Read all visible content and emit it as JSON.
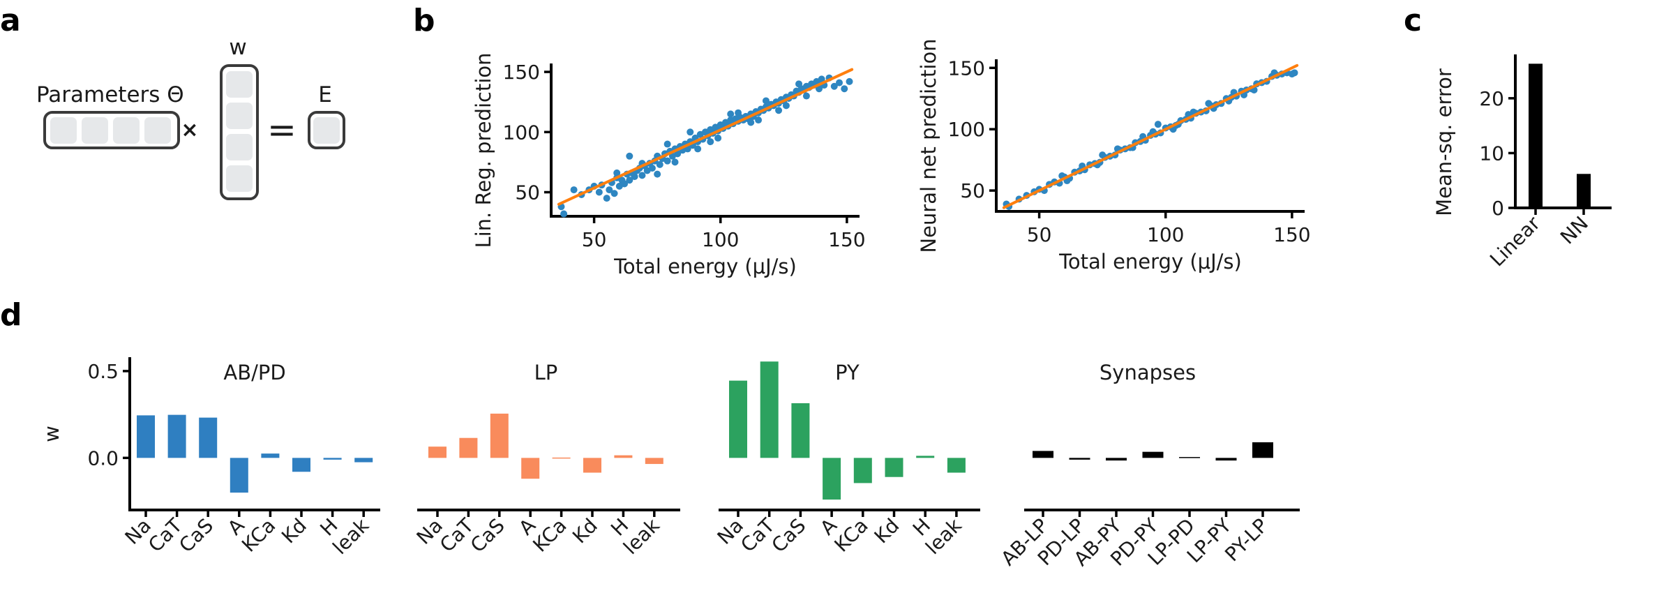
{
  "panels": {
    "a": {
      "label": "a",
      "w_label": "w",
      "params_label": "Parameters Θ",
      "times": "×",
      "equals": "=",
      "e_label": "E"
    },
    "b": {
      "label": "b"
    },
    "c": {
      "label": "c"
    },
    "d": {
      "label": "d"
    }
  },
  "colors": {
    "scatter": "#2e86c1",
    "fit": "#ff7f0e",
    "abpd": "#2f7fc1",
    "lp": "#f98b5c",
    "py": "#2ca25f",
    "syn": "#000000",
    "box_fill": "#e6e8ea",
    "box_stroke": "#3a3a3a"
  },
  "chart_data": [
    {
      "id": "b-linear",
      "type": "scatter",
      "xlabel": "Total energy (μJ/s)",
      "ylabel": "Lin. Reg. prediction",
      "xlim": [
        33,
        155
      ],
      "ylim": [
        30,
        157
      ],
      "xticks": [
        50,
        100,
        150
      ],
      "yticks": [
        50,
        100,
        150
      ],
      "fit_line": [
        [
          36,
          40
        ],
        [
          152,
          152
        ]
      ],
      "points": [
        [
          37,
          38
        ],
        [
          38,
          32
        ],
        [
          42,
          52
        ],
        [
          45,
          48
        ],
        [
          48,
          52
        ],
        [
          50,
          55
        ],
        [
          52,
          50
        ],
        [
          53,
          56
        ],
        [
          55,
          45
        ],
        [
          56,
          52
        ],
        [
          57,
          58
        ],
        [
          58,
          49
        ],
        [
          59,
          62
        ],
        [
          60,
          55
        ],
        [
          61,
          60
        ],
        [
          62,
          57
        ],
        [
          63,
          65
        ],
        [
          64,
          60
        ],
        [
          65,
          66
        ],
        [
          66,
          63
        ],
        [
          67,
          68
        ],
        [
          68,
          70
        ],
        [
          69,
          64
        ],
        [
          70,
          72
        ],
        [
          71,
          68
        ],
        [
          72,
          74
        ],
        [
          73,
          70
        ],
        [
          74,
          76
        ],
        [
          75,
          80
        ],
        [
          76,
          73
        ],
        [
          77,
          78
        ],
        [
          78,
          82
        ],
        [
          79,
          76
        ],
        [
          80,
          84
        ],
        [
          81,
          80
        ],
        [
          82,
          86
        ],
        [
          83,
          82
        ],
        [
          84,
          88
        ],
        [
          85,
          85
        ],
        [
          86,
          90
        ],
        [
          87,
          86
        ],
        [
          88,
          92
        ],
        [
          89,
          89
        ],
        [
          90,
          95
        ],
        [
          91,
          92
        ],
        [
          92,
          98
        ],
        [
          93,
          94
        ],
        [
          94,
          100
        ],
        [
          95,
          97
        ],
        [
          96,
          102
        ],
        [
          97,
          99
        ],
        [
          98,
          104
        ],
        [
          99,
          101
        ],
        [
          100,
          106
        ],
        [
          101,
          103
        ],
        [
          102,
          108
        ],
        [
          103,
          105
        ],
        [
          104,
          110
        ],
        [
          105,
          107
        ],
        [
          106,
          111
        ],
        [
          107,
          109
        ],
        [
          108,
          112
        ],
        [
          109,
          110
        ],
        [
          110,
          113
        ],
        [
          111,
          111
        ],
        [
          112,
          115
        ],
        [
          113,
          113
        ],
        [
          114,
          117
        ],
        [
          115,
          116
        ],
        [
          116,
          119
        ],
        [
          117,
          118
        ],
        [
          118,
          121
        ],
        [
          119,
          120
        ],
        [
          120,
          123
        ],
        [
          121,
          122
        ],
        [
          122,
          125
        ],
        [
          123,
          124
        ],
        [
          124,
          127
        ],
        [
          125,
          126
        ],
        [
          126,
          129
        ],
        [
          127,
          128
        ],
        [
          128,
          131
        ],
        [
          129,
          130
        ],
        [
          130,
          134
        ],
        [
          131,
          133
        ],
        [
          132,
          136
        ],
        [
          133,
          135
        ],
        [
          134,
          138
        ],
        [
          135,
          137
        ],
        [
          136,
          140
        ],
        [
          137,
          139
        ],
        [
          138,
          142
        ],
        [
          139,
          141
        ],
        [
          140,
          144
        ],
        [
          141,
          139
        ],
        [
          143,
          145
        ],
        [
          145,
          138
        ],
        [
          147,
          141
        ],
        [
          149,
          136
        ],
        [
          151,
          142
        ],
        [
          64,
          80
        ],
        [
          75,
          65
        ],
        [
          82,
          75
        ],
        [
          88,
          100
        ],
        [
          96,
          92
        ],
        [
          104,
          115
        ],
        [
          112,
          108
        ],
        [
          118,
          126
        ],
        [
          126,
          122
        ],
        [
          134,
          130
        ],
        [
          59,
          66
        ],
        [
          69,
          74
        ],
        [
          79,
          90
        ],
        [
          91,
          86
        ],
        [
          99,
          95
        ],
        [
          107,
          116
        ],
        [
          115,
          110
        ],
        [
          123,
          118
        ],
        [
          131,
          140
        ],
        [
          139,
          136
        ]
      ]
    },
    {
      "id": "b-nn",
      "type": "scatter",
      "xlabel": "Total energy (μJ/s)",
      "ylabel": "Neural net prediction",
      "xlim": [
        33,
        155
      ],
      "ylim": [
        33,
        157
      ],
      "xticks": [
        50,
        100,
        150
      ],
      "yticks": [
        50,
        100,
        150
      ],
      "fit_line": [
        [
          36,
          36
        ],
        [
          152,
          152
        ]
      ],
      "points": [
        [
          37,
          39
        ],
        [
          38,
          37
        ],
        [
          42,
          43
        ],
        [
          45,
          46
        ],
        [
          48,
          49
        ],
        [
          50,
          51
        ],
        [
          52,
          50
        ],
        [
          54,
          55
        ],
        [
          56,
          57
        ],
        [
          58,
          56
        ],
        [
          60,
          61
        ],
        [
          62,
          60
        ],
        [
          64,
          65
        ],
        [
          66,
          66
        ],
        [
          68,
          67
        ],
        [
          70,
          71
        ],
        [
          72,
          72
        ],
        [
          74,
          73
        ],
        [
          76,
          77
        ],
        [
          78,
          78
        ],
        [
          80,
          79
        ],
        [
          82,
          83
        ],
        [
          84,
          84
        ],
        [
          86,
          85
        ],
        [
          88,
          89
        ],
        [
          90,
          90
        ],
        [
          92,
          91
        ],
        [
          94,
          95
        ],
        [
          96,
          96
        ],
        [
          98,
          97
        ],
        [
          100,
          101
        ],
        [
          102,
          102
        ],
        [
          104,
          103
        ],
        [
          106,
          107
        ],
        [
          108,
          108
        ],
        [
          110,
          109
        ],
        [
          112,
          113
        ],
        [
          114,
          114
        ],
        [
          116,
          115
        ],
        [
          118,
          119
        ],
        [
          120,
          120
        ],
        [
          122,
          121
        ],
        [
          124,
          125
        ],
        [
          126,
          126
        ],
        [
          128,
          127
        ],
        [
          130,
          131
        ],
        [
          132,
          132
        ],
        [
          134,
          133
        ],
        [
          136,
          137
        ],
        [
          138,
          138
        ],
        [
          140,
          139
        ],
        [
          142,
          143
        ],
        [
          144,
          144
        ],
        [
          146,
          145
        ],
        [
          148,
          146
        ],
        [
          150,
          145
        ],
        [
          151,
          146
        ],
        [
          59,
          62
        ],
        [
          67,
          70
        ],
        [
          73,
          71
        ],
        [
          81,
          84
        ],
        [
          87,
          85
        ],
        [
          95,
          98
        ],
        [
          103,
          100
        ],
        [
          111,
          114
        ],
        [
          119,
          117
        ],
        [
          127,
          130
        ],
        [
          135,
          132
        ],
        [
          143,
          146
        ],
        [
          61,
          58
        ],
        [
          75,
          79
        ],
        [
          91,
          94
        ],
        [
          105,
          104
        ],
        [
          117,
          121
        ],
        [
          131,
          128
        ],
        [
          97,
          104
        ],
        [
          109,
          112
        ],
        [
          125,
          123
        ]
      ]
    },
    {
      "id": "c",
      "type": "bar",
      "ylabel": "Mean-sq. error",
      "categories": [
        "Linear",
        "NN"
      ],
      "values": [
        26.3,
        6.2
      ],
      "ylim": [
        0,
        28
      ],
      "yticks": [
        0,
        10,
        20
      ]
    },
    {
      "id": "d",
      "type": "bar",
      "ylabel": "w",
      "ylim": [
        -0.3,
        0.58
      ],
      "yticks": [
        0.0,
        0.5
      ],
      "ytick_labels": [
        "0.0",
        "0.5"
      ],
      "groups": [
        {
          "title": "AB/PD",
          "color_key": "abpd",
          "categories": [
            "Na",
            "CaT",
            "CaS",
            "A",
            "KCa",
            "Kd",
            "H",
            "leak"
          ],
          "values": [
            0.245,
            0.248,
            0.232,
            -0.2,
            0.025,
            -0.08,
            -0.01,
            -0.025
          ]
        },
        {
          "title": "LP",
          "color_key": "lp",
          "categories": [
            "Na",
            "CaT",
            "CaS",
            "A",
            "KCa",
            "Kd",
            "H",
            "leak"
          ],
          "values": [
            0.065,
            0.115,
            0.255,
            -0.12,
            0.002,
            -0.085,
            0.015,
            -0.035
          ]
        },
        {
          "title": "PY",
          "color_key": "py",
          "categories": [
            "Na",
            "CaT",
            "CaS",
            "A",
            "KCa",
            "Kd",
            "H",
            "leak"
          ],
          "values": [
            0.445,
            0.555,
            0.315,
            -0.24,
            -0.145,
            -0.11,
            0.012,
            -0.085
          ]
        },
        {
          "title": "Synapses",
          "color_key": "syn",
          "categories": [
            "AB-LP",
            "PD-LP",
            "AB-PY",
            "PD-PY",
            "LP-PD",
            "LP-PY",
            "PY-LP"
          ],
          "values": [
            0.04,
            -0.01,
            -0.015,
            0.035,
            0.005,
            -0.015,
            0.09
          ]
        }
      ]
    }
  ]
}
